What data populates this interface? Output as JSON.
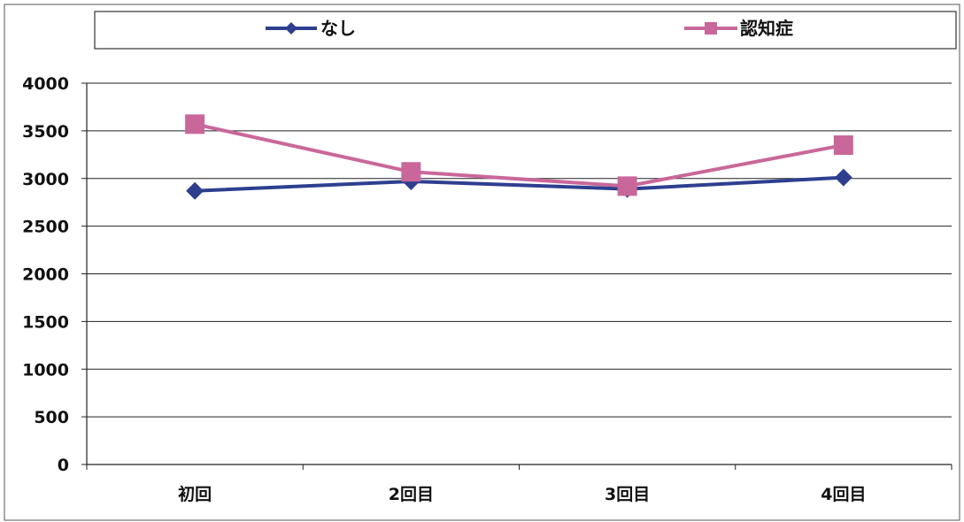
{
  "chart_data": {
    "type": "line",
    "categories": [
      "初回",
      "2回目",
      "3回目",
      "4回目"
    ],
    "series": [
      {
        "name": "なし",
        "values": [
          2870,
          2970,
          2890,
          3010
        ],
        "color": "#2E3F8F",
        "marker": "diamond"
      },
      {
        "name": "認知症",
        "values": [
          3570,
          3070,
          2920,
          3350
        ],
        "color": "#C9679B",
        "marker": "square"
      }
    ],
    "ylim": [
      0,
      4000
    ],
    "yticks": [
      0,
      500,
      1000,
      1500,
      2000,
      2500,
      3000,
      3500,
      4000
    ],
    "grid": true,
    "legend_position": "top"
  }
}
